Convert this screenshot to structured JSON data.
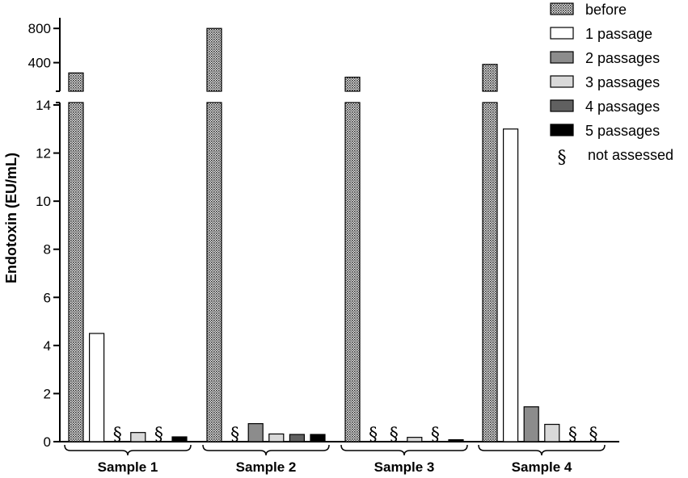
{
  "chart_data": {
    "type": "bar",
    "ylabel": "Endotoxin (EU/mL)",
    "categories": [
      "Sample 1",
      "Sample 2",
      "Sample 3",
      "Sample 4"
    ],
    "series": [
      {
        "name": "before",
        "fill": "crosshatch",
        "values": [
          280,
          800,
          230,
          380
        ]
      },
      {
        "name": "1 passage",
        "fill": "#ffffff",
        "values": [
          4.5,
          "§",
          "§",
          13
        ]
      },
      {
        "name": "2 passages",
        "fill": "#8c8c8c",
        "values": [
          "§",
          0.75,
          "§",
          1.45
        ]
      },
      {
        "name": "3 passages",
        "fill": "#d9d9d9",
        "values": [
          0.38,
          0.32,
          0.18,
          0.72
        ]
      },
      {
        "name": "4 passages",
        "fill": "#606060",
        "values": [
          "§",
          0.3,
          "§",
          "§"
        ]
      },
      {
        "name": "5 passages",
        "fill": "#000000",
        "values": [
          0.2,
          0.3,
          0.08,
          "§"
        ]
      }
    ],
    "na_symbol": "§",
    "na_label": "not assessed",
    "y_lower": {
      "ylim": [
        0,
        14
      ],
      "ticks": [
        "0",
        "2",
        "4",
        "6",
        "8",
        "10",
        "12",
        "14"
      ]
    },
    "y_upper": {
      "ticks": [
        "400",
        "800"
      ]
    },
    "axis_break": true,
    "legend_position": "top-right",
    "grid": false
  }
}
